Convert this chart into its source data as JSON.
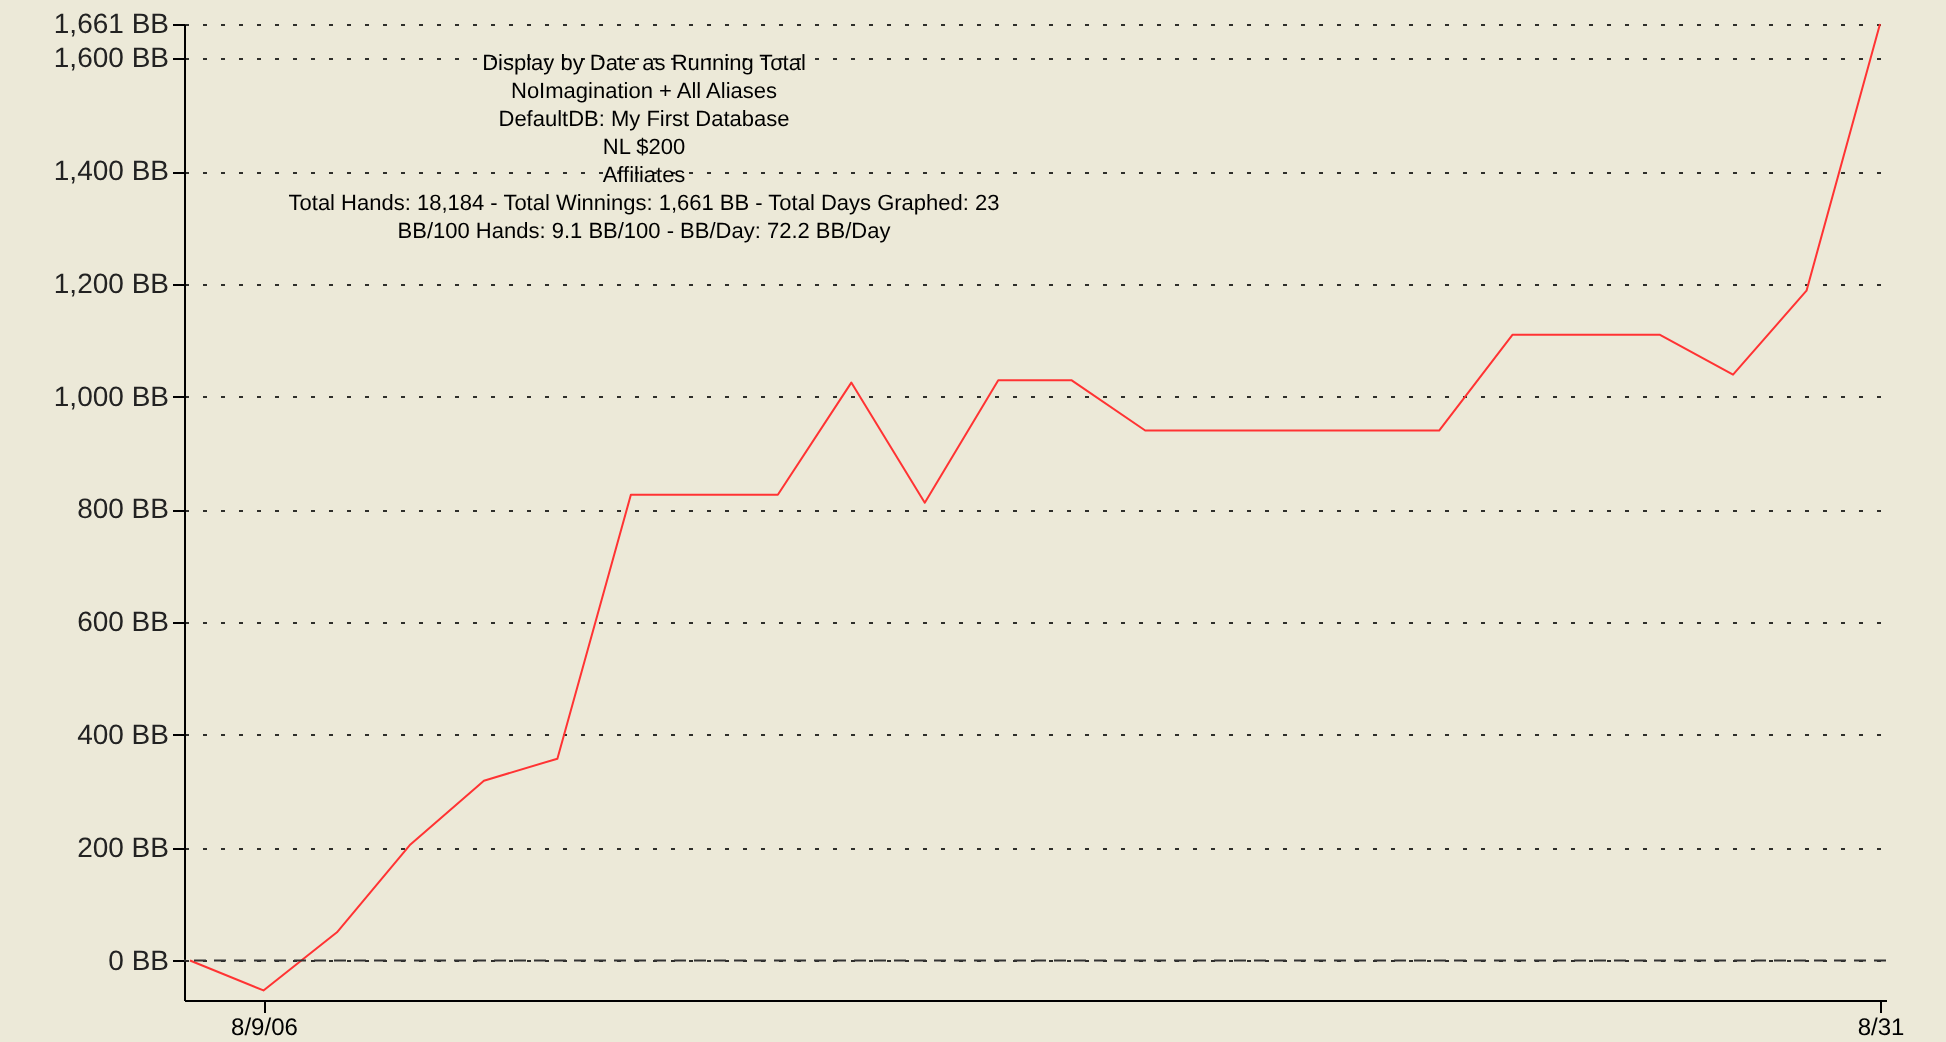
{
  "chart_data": {
    "type": "line",
    "categories": [
      null,
      "8/9/06",
      null,
      null,
      null,
      null,
      null,
      null,
      null,
      null,
      null,
      null,
      null,
      null,
      null,
      null,
      null,
      null,
      null,
      null,
      null,
      null,
      null,
      "8/31"
    ],
    "series": [
      {
        "color": "#ff3333",
        "values": [
          0,
          -53,
          50,
          206,
          319,
          358,
          826,
          826,
          826,
          1025,
          812,
          1029,
          1029,
          940,
          940,
          940,
          940,
          940,
          1110,
          1110,
          1110,
          1039,
          1188,
          1661
        ]
      }
    ],
    "ylim": [
      -70,
      1661
    ],
    "yticks": [
      {
        "value": 0,
        "label": "0 BB"
      },
      {
        "value": 200,
        "label": "200 BB"
      },
      {
        "value": 400,
        "label": "400 BB"
      },
      {
        "value": 600,
        "label": "600 BB"
      },
      {
        "value": 800,
        "label": "800 BB"
      },
      {
        "value": 1000,
        "label": "1,000 BB"
      },
      {
        "value": 1200,
        "label": "1,200 BB"
      },
      {
        "value": 1400,
        "label": "1,400 BB"
      },
      {
        "value": 1600,
        "label": "1,600 BB"
      },
      {
        "value": 1661,
        "label": "1,661 BB"
      }
    ],
    "grid": "y",
    "ref_lines": [
      {
        "axis": "y",
        "value": 0,
        "label": null,
        "color": "#333333",
        "line_style": "dashed"
      }
    ],
    "line_style": "solid",
    "marker": "none",
    "annotations": [
      "Display by Date as Running Total",
      "NoImagination + All Aliases",
      "DefaultDB: My First Database",
      "NL $200",
      "Affiliates",
      "Total Hands: 18,184 - Total Winnings: 1,661 BB - Total Days Graphed: 23",
      "BB/100 Hands: 9.1 BB/100 - BB/Day: 72.2 BB/Day"
    ]
  }
}
